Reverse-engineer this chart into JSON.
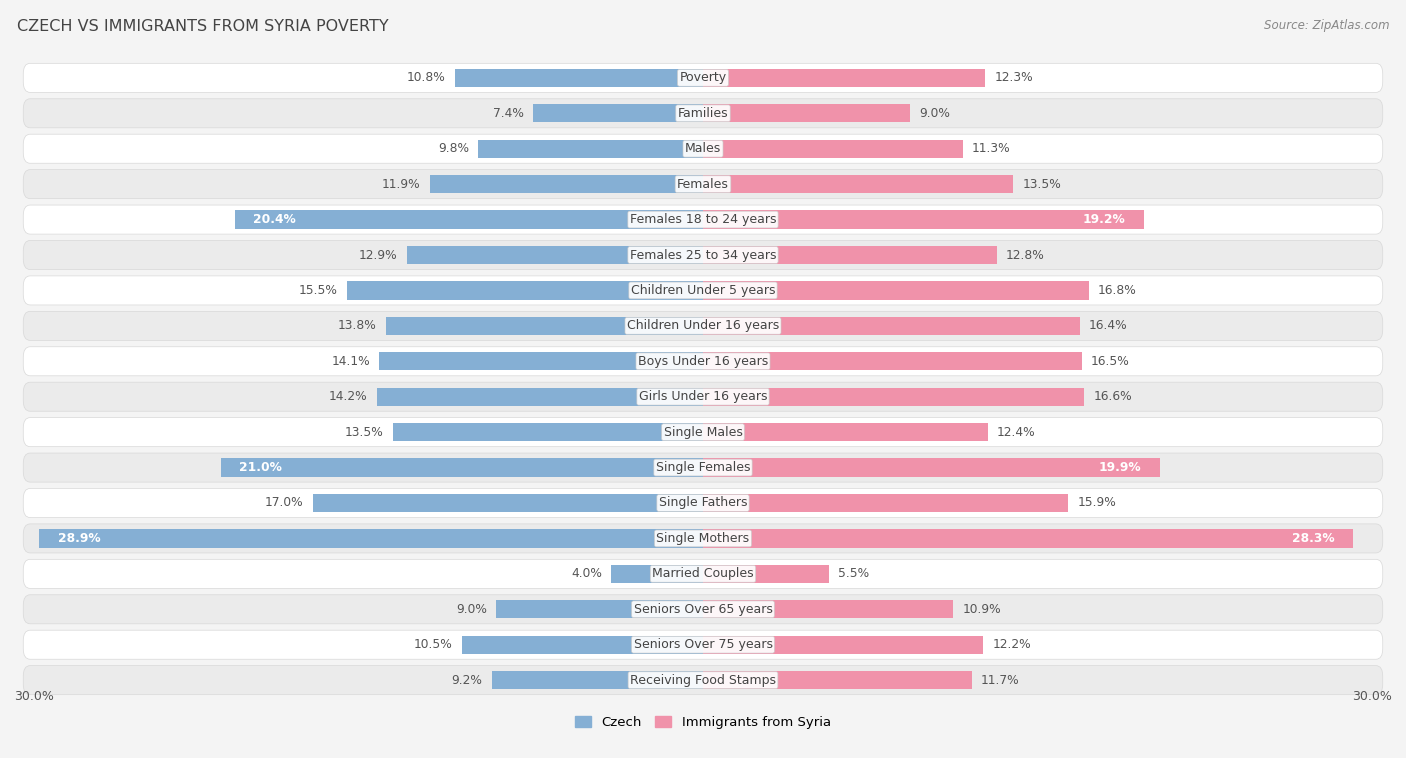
{
  "title": "CZECH VS IMMIGRANTS FROM SYRIA POVERTY",
  "source": "Source: ZipAtlas.com",
  "categories": [
    "Poverty",
    "Families",
    "Males",
    "Females",
    "Females 18 to 24 years",
    "Females 25 to 34 years",
    "Children Under 5 years",
    "Children Under 16 years",
    "Boys Under 16 years",
    "Girls Under 16 years",
    "Single Males",
    "Single Females",
    "Single Fathers",
    "Single Mothers",
    "Married Couples",
    "Seniors Over 65 years",
    "Seniors Over 75 years",
    "Receiving Food Stamps"
  ],
  "czech_values": [
    10.8,
    7.4,
    9.8,
    11.9,
    20.4,
    12.9,
    15.5,
    13.8,
    14.1,
    14.2,
    13.5,
    21.0,
    17.0,
    28.9,
    4.0,
    9.0,
    10.5,
    9.2
  ],
  "syria_values": [
    12.3,
    9.0,
    11.3,
    13.5,
    19.2,
    12.8,
    16.8,
    16.4,
    16.5,
    16.6,
    12.4,
    19.9,
    15.9,
    28.3,
    5.5,
    10.9,
    12.2,
    11.7
  ],
  "czech_color": "#85afd4",
  "syria_color": "#f092aa",
  "czech_label": "Czech",
  "syria_label": "Immigrants from Syria",
  "axis_max": 30.0,
  "bar_height": 0.52,
  "bg_color": "#f4f4f4",
  "row_color_light": "#ffffff",
  "row_color_dark": "#ebebeb",
  "label_fontsize": 9.0,
  "value_fontsize": 8.8,
  "title_fontsize": 11.5,
  "source_fontsize": 8.5,
  "white_text_threshold_czech": 18.0,
  "white_text_threshold_syria": 18.0
}
